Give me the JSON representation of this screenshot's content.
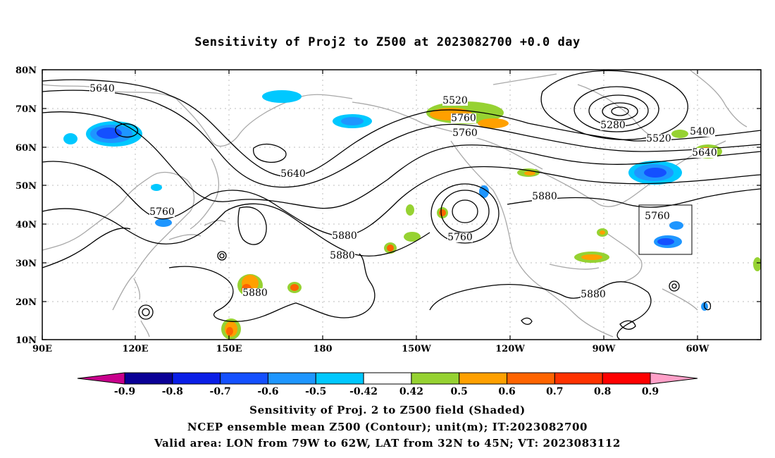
{
  "title": "Sensitivity of Proj2 to Z500 at 2023082700 +0.0 day",
  "captions": [
    "Sensitivity of Proj. 2 to Z500 field (Shaded)",
    "NCEP ensemble mean Z500 (Contour); unit(m); IT:2023082700",
    "Valid area: LON from 79W to 62W, LAT from 32N to 45N; VT: 2023083112"
  ],
  "map": {
    "lat_ticks": [
      "80N",
      "70N",
      "60N",
      "50N",
      "40N",
      "30N",
      "20N",
      "10N"
    ],
    "lon_ticks": [
      "90E",
      "120E",
      "150E",
      "180",
      "150W",
      "120W",
      "90W",
      "60W"
    ],
    "contour_labels": [
      "5640",
      "5520",
      "5640",
      "5760",
      "5280",
      "5400",
      "5520",
      "5640",
      "5760",
      "5880",
      "5760",
      "5760",
      "5880",
      "5880",
      "5880",
      "5760",
      "5880"
    ],
    "valid_box": {
      "lon_from": "79W",
      "lon_to": "62W",
      "lat_from": "32N",
      "lat_to": "45N"
    }
  },
  "colorbar": {
    "labels": [
      "-0.9",
      "-0.8",
      "-0.7",
      "-0.6",
      "-0.5",
      "-0.42",
      "0.42",
      "0.5",
      "0.6",
      "0.7",
      "0.8",
      "0.9"
    ],
    "colors": [
      "#c8008c",
      "#0a0096",
      "#0a1ee6",
      "#1450ff",
      "#1e96ff",
      "#00c8ff",
      "#ffffff",
      "#96d232",
      "#ffa000",
      "#ff6400",
      "#ff3200",
      "#ff0000",
      "#ffa0c8"
    ]
  }
}
